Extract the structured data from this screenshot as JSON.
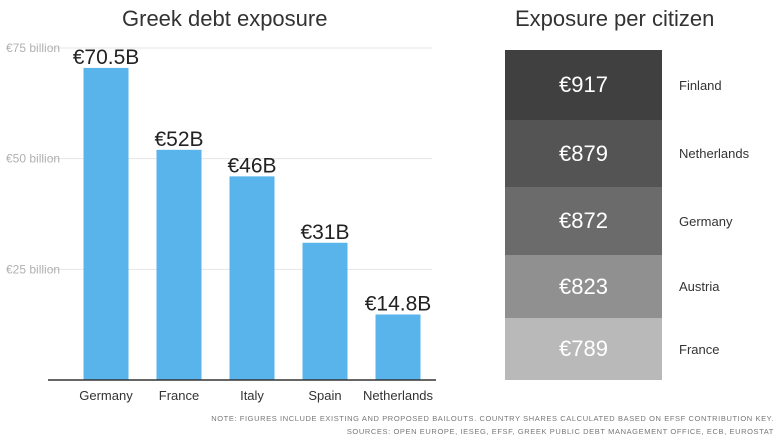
{
  "left_chart": {
    "title": "Greek debt exposure"
  },
  "right_panel": {
    "title": "Exposure per citizen",
    "rows": [
      {
        "value": "€917",
        "country": "Finland",
        "color": "#404040"
      },
      {
        "value": "€879",
        "country": "Netherlands",
        "color": "#545454"
      },
      {
        "value": "€872",
        "country": "Germany",
        "color": "#6b6b6b"
      },
      {
        "value": "€823",
        "country": "Austria",
        "color": "#909090"
      },
      {
        "value": "€789",
        "country": "France",
        "color": "#b9b9b9"
      }
    ]
  },
  "footnotes": {
    "note": "NOTE: Figures include existing and proposed bailouts. Country shares calculated based on EFSF contribution key.",
    "sources": "SOURCES: Open Europe, IESEG, EFSF, Greek Public Debt Management Office, ECB, Eurostat"
  },
  "chart_data": {
    "type": "bar",
    "title": "Greek debt exposure",
    "categories": [
      "Germany",
      "France",
      "Italy",
      "Spain",
      "Netherlands"
    ],
    "values": [
      70.5,
      52,
      46,
      31,
      14.8
    ],
    "data_labels": [
      "€70.5B",
      "€52B",
      "€46B",
      "€31B",
      "€14.8B"
    ],
    "yticks": [
      25,
      50,
      75
    ],
    "ytick_labels": [
      "€25 billion",
      "€50 billion",
      "€75 billion"
    ],
    "ylim": [
      0,
      75
    ],
    "grid": true,
    "bar_color": "#5ab4ec",
    "grid_color": "#e6e6e6",
    "axis_color": "#333333"
  }
}
